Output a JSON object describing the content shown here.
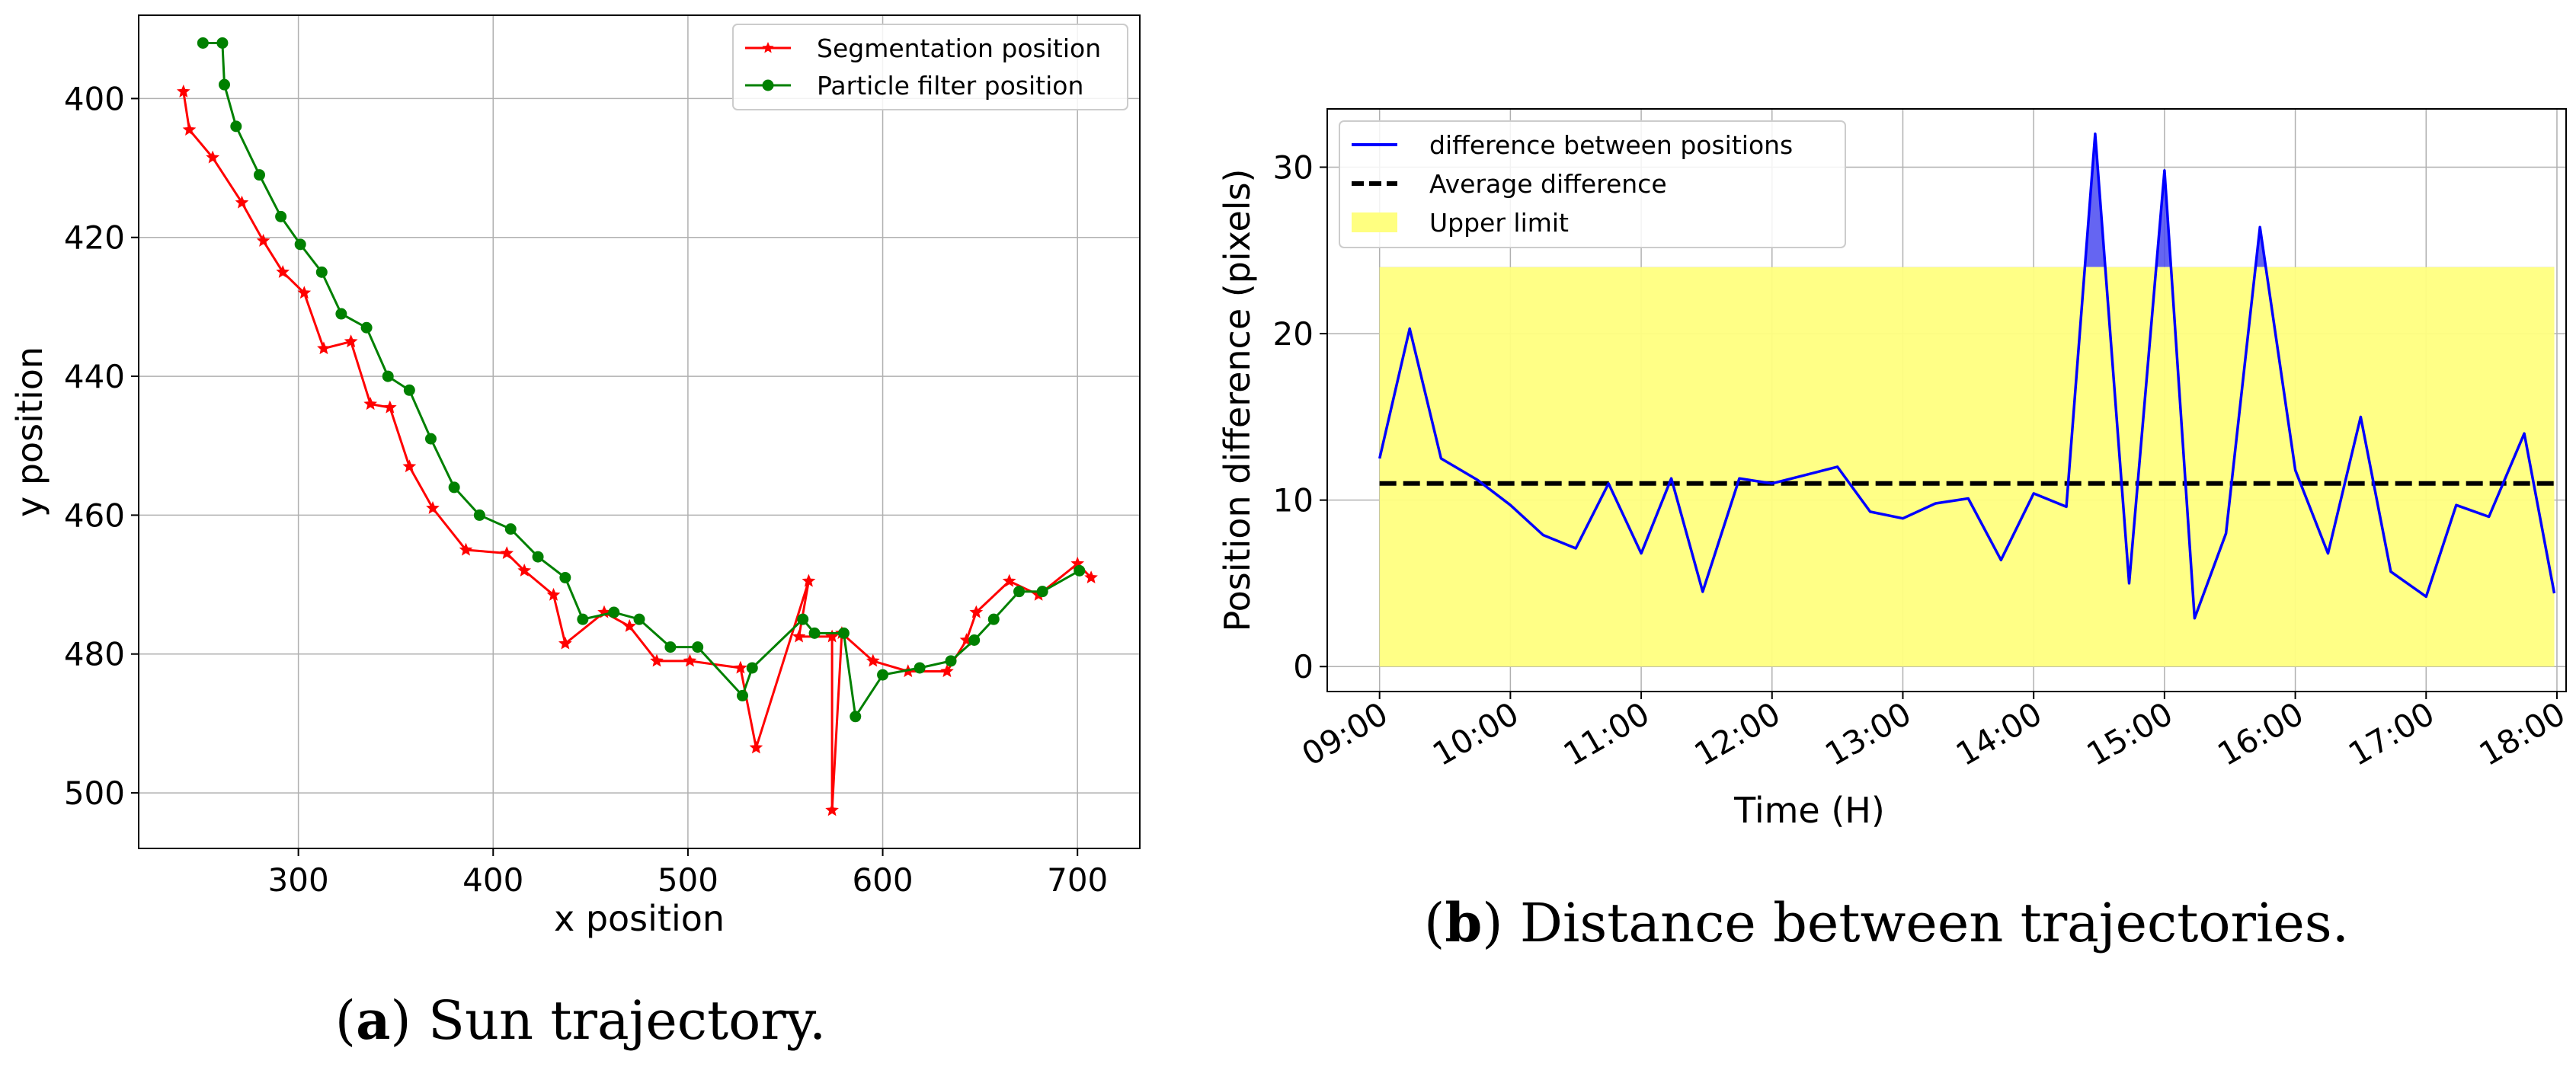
{
  "chart_data": [
    {
      "type": "line",
      "caption_letter": "a",
      "caption_text": "Sun trajectory.",
      "xlabel": "x position",
      "ylabel": "y position",
      "xlim": [
        218,
        732
      ],
      "ylim": [
        508,
        388
      ],
      "y_inverted": true,
      "xticks": [
        300,
        400,
        500,
        600,
        700
      ],
      "yticks": [
        400,
        420,
        440,
        460,
        480,
        500
      ],
      "grid": true,
      "legend_position": "top-right",
      "series": [
        {
          "name": "Segmentation position",
          "color": "#ff0000",
          "marker": "star",
          "points": [
            [
              241,
              399
            ],
            [
              244,
              404.5
            ],
            [
              256,
              408.5
            ],
            [
              271,
              415
            ],
            [
              282,
              420.5
            ],
            [
              292,
              425
            ],
            [
              303,
              428
            ],
            [
              313,
              436
            ],
            [
              327,
              435
            ],
            [
              337,
              444
            ],
            [
              347,
              444.5
            ],
            [
              357,
              453
            ],
            [
              369,
              459
            ],
            [
              386,
              465
            ],
            [
              407,
              465.5
            ],
            [
              416,
              468
            ],
            [
              431,
              471.5
            ],
            [
              437,
              478.5
            ],
            [
              457,
              474
            ],
            [
              470,
              476
            ],
            [
              484,
              481
            ],
            [
              501,
              481
            ],
            [
              527,
              482
            ],
            [
              535,
              493.5
            ],
            [
              562,
              469.5
            ],
            [
              557,
              477.5
            ],
            [
              574,
              477.5
            ],
            [
              574,
              502.5
            ],
            [
              579,
              477
            ],
            [
              595,
              481
            ],
            [
              613,
              482.5
            ],
            [
              633,
              482.5
            ],
            [
              643,
              478
            ],
            [
              648,
              474
            ],
            [
              665,
              469.5
            ],
            [
              680,
              471.5
            ],
            [
              700,
              467
            ],
            [
              707,
              469
            ]
          ]
        },
        {
          "name": "Particle filter position",
          "color": "#008000",
          "marker": "circle",
          "points": [
            [
              251,
              392
            ],
            [
              261,
              392
            ],
            [
              262,
              398
            ],
            [
              268,
              404
            ],
            [
              280,
              411
            ],
            [
              291,
              417
            ],
            [
              301,
              421
            ],
            [
              312,
              425
            ],
            [
              322,
              431
            ],
            [
              335,
              433
            ],
            [
              346,
              440
            ],
            [
              357,
              442
            ],
            [
              368,
              449
            ],
            [
              380,
              456
            ],
            [
              393,
              460
            ],
            [
              409,
              462
            ],
            [
              423,
              466
            ],
            [
              437,
              469
            ],
            [
              446,
              475
            ],
            [
              462,
              474
            ],
            [
              475,
              475
            ],
            [
              491,
              479
            ],
            [
              505,
              479
            ],
            [
              528,
              486
            ],
            [
              533,
              482
            ],
            [
              559,
              475
            ],
            [
              565,
              477
            ],
            [
              580,
              477
            ],
            [
              586,
              489
            ],
            [
              600,
              483
            ],
            [
              619,
              482
            ],
            [
              635,
              481
            ],
            [
              647,
              478
            ],
            [
              657,
              475
            ],
            [
              670,
              471
            ],
            [
              682,
              471
            ],
            [
              701,
              468
            ]
          ]
        }
      ]
    },
    {
      "type": "line",
      "caption_letter": "b",
      "caption_text": "Distance between trajectories.",
      "xlabel": "Time (H)",
      "ylabel": "Position difference (pixels)",
      "xlim": [
        8.6,
        18.07
      ],
      "ylim": [
        -1.5,
        33.5
      ],
      "xticks": [
        9,
        10,
        11,
        12,
        13,
        14,
        15,
        16,
        17,
        18
      ],
      "xtick_labels": [
        "09:00",
        "10:00",
        "11:00",
        "12:00",
        "13:00",
        "14:00",
        "15:00",
        "16:00",
        "17:00",
        "18:00"
      ],
      "yticks": [
        0,
        10,
        20,
        30
      ],
      "grid": true,
      "legend_position": "top-left",
      "upper_limit": 24,
      "average": 11,
      "legend": {
        "line": "difference between positions",
        "avg": "Average difference",
        "limit": "Upper limit"
      },
      "colors": {
        "line": "#0000ff",
        "avg": "#000000",
        "band": "#ffff80",
        "exceed": "#4a4af0"
      },
      "series": [
        {
          "name": "difference between positions",
          "x": [
            9.0,
            9.23,
            9.47,
            9.75,
            10.0,
            10.25,
            10.5,
            10.75,
            11.0,
            11.23,
            11.47,
            11.75,
            12.0,
            12.25,
            12.5,
            12.75,
            13.0,
            13.25,
            13.5,
            13.75,
            14.0,
            14.25,
            14.47,
            14.73,
            15.0,
            15.23,
            15.47,
            15.73,
            16.0,
            16.25,
            16.5,
            16.73,
            17.0,
            17.23,
            17.48,
            17.75,
            17.98
          ],
          "y": [
            12.5,
            20.3,
            12.5,
            11.2,
            9.7,
            7.9,
            7.1,
            11.0,
            6.8,
            11.3,
            4.5,
            11.3,
            11.0,
            11.5,
            12.0,
            9.3,
            8.9,
            9.8,
            10.1,
            6.4,
            10.4,
            9.6,
            32.0,
            5.0,
            29.8,
            2.9,
            8.0,
            26.4,
            11.8,
            6.8,
            15.0,
            5.7,
            4.2,
            9.7,
            9.0,
            14.0,
            4.4
          ]
        }
      ]
    }
  ]
}
